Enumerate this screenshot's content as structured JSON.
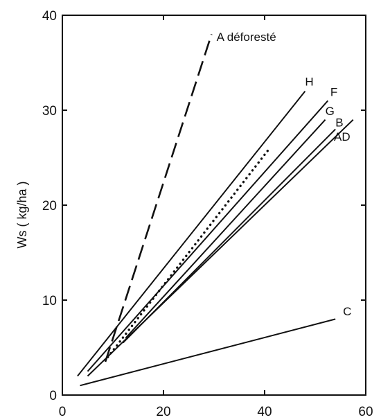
{
  "chart_data": {
    "type": "line",
    "title": "",
    "xlabel": "",
    "ylabel": "Ws ( kg/ha )",
    "xlim": [
      0,
      60
    ],
    "ylim": [
      0,
      40
    ],
    "x_ticks": [
      0,
      20,
      40,
      60
    ],
    "y_ticks": [
      0,
      10,
      20,
      30,
      40
    ],
    "x_tick_labels": [
      "0",
      "20",
      "40",
      "60"
    ],
    "y_tick_labels": [
      "0",
      "10",
      "20",
      "30",
      "40"
    ],
    "grid": false,
    "legend": "none",
    "series": [
      {
        "name": "A déforesté",
        "style": "dashed",
        "x": [
          8.5,
          29.5
        ],
        "y": [
          3.5,
          38
        ]
      },
      {
        "name": "H",
        "style": "solid",
        "x": [
          3,
          48
        ],
        "y": [
          2,
          32
        ]
      },
      {
        "name": "F",
        "style": "solid",
        "x": [
          5,
          52.5
        ],
        "y": [
          2.5,
          31
        ]
      },
      {
        "name": "G",
        "style": "solid",
        "x": [
          12.5,
          52
        ],
        "y": [
          6,
          29
        ]
      },
      {
        "name": "B",
        "style": "solid",
        "x": [
          12,
          54
        ],
        "y": [
          5.5,
          28
        ]
      },
      {
        "name": "AD",
        "style": "solid",
        "x": [
          5,
          57.5
        ],
        "y": [
          2,
          29
        ]
      },
      {
        "name": "",
        "style": "dotted",
        "x": [
          9,
          41
        ],
        "y": [
          4,
          26
        ]
      },
      {
        "name": "C",
        "style": "solid",
        "x": [
          3.5,
          54
        ],
        "y": [
          1,
          8
        ]
      }
    ],
    "labels": [
      {
        "series": "A déforesté",
        "text": "A déforesté",
        "x": 30.5,
        "y": 37.3
      },
      {
        "series": "H",
        "text": "H",
        "x": 48,
        "y": 32.6
      },
      {
        "series": "F",
        "text": "F",
        "x": 53,
        "y": 31.5
      },
      {
        "series": "G",
        "text": "G",
        "x": 52,
        "y": 29.5
      },
      {
        "series": "B",
        "text": "B",
        "x": 54,
        "y": 28.3
      },
      {
        "series": "AD",
        "text": "AD",
        "x": 53.7,
        "y": 26.8
      },
      {
        "series": "C",
        "text": "C",
        "x": 55.5,
        "y": 8.4
      }
    ]
  }
}
